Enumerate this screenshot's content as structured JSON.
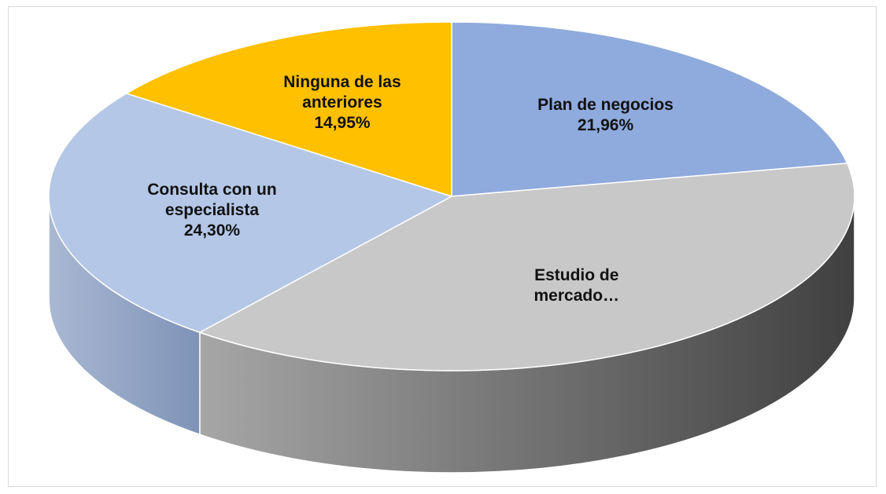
{
  "chart_data": {
    "type": "pie",
    "three_d": true,
    "categories": [
      "Plan de negocios",
      "Estudio de mercado…",
      "Consulta con un especialista",
      "Ninguna de las anteriores"
    ],
    "values": [
      21.96,
      38.79,
      24.3,
      14.95
    ],
    "value_labels": [
      "21,96%",
      null,
      "24,30%",
      "14,95%"
    ],
    "colors": [
      "#8faadc",
      "#c9c8c9",
      "#b4c7e7",
      "#ffc000"
    ]
  }
}
